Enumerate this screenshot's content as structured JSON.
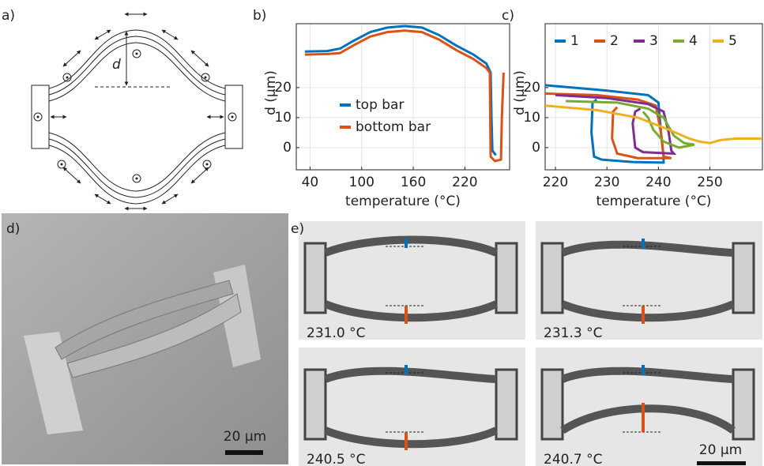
{
  "diagram": {
    "panel_label": "a)",
    "dimension_label": "d"
  },
  "chart_data": [
    {
      "type": "line",
      "panel_label": "b)",
      "x_label": "temperature (°C)",
      "y_label": "d (µm)",
      "xlim": [
        24,
        272
      ],
      "ylim": [
        -7.4,
        41.3
      ],
      "xticks": [
        40,
        100,
        160,
        220
      ],
      "yticks": [
        0,
        10,
        20
      ],
      "grid": true,
      "legend": "lower center",
      "legend_columns": 1,
      "series": [
        {
          "name": "top bar",
          "color": "#0072bd",
          "x": [
            34,
            60,
            75,
            90,
            110,
            130,
            150,
            170,
            190,
            210,
            230,
            245,
            250,
            251,
            252,
            256
          ],
          "values": [
            32,
            32.2,
            33,
            35.5,
            38.5,
            40,
            40.5,
            40,
            37.5,
            34,
            31,
            28,
            25,
            10,
            -1,
            -2.5
          ]
        },
        {
          "name": "bottom bar",
          "color": "#d95319",
          "x": [
            34,
            60,
            75,
            90,
            110,
            130,
            150,
            170,
            190,
            210,
            230,
            245,
            249,
            249.5,
            250,
            255,
            262,
            263,
            265
          ],
          "values": [
            31,
            31.2,
            31.5,
            34,
            37,
            38.5,
            39,
            38.5,
            36,
            32.5,
            29.5,
            26.5,
            25,
            10,
            -3,
            -4.5,
            -4,
            10,
            25
          ]
        }
      ]
    },
    {
      "type": "line",
      "panel_label": "c)",
      "x_label": "temperature (°C)",
      "y_label": "d (µm)",
      "xlim": [
        218,
        260.2
      ],
      "ylim": [
        -7.4,
        41.3
      ],
      "xticks": [
        220,
        230,
        240,
        250
      ],
      "yticks": [
        0,
        10,
        20
      ],
      "grid": true,
      "legend": "upper center",
      "legend_columns": 5,
      "series": [
        {
          "name": "1",
          "color": "#0072bd",
          "x": [
            218,
            230,
            238,
            240,
            240.5,
            241,
            241,
            235,
            229,
            227.5,
            227,
            227.2,
            228
          ],
          "values": [
            20.8,
            19,
            17.5,
            15,
            5,
            -3,
            -5,
            -4.8,
            -4,
            -3,
            5,
            15,
            16
          ]
        },
        {
          "name": "2",
          "color": "#d95319",
          "x": [
            218,
            228,
            236,
            239.5,
            240.5,
            241,
            242.5,
            236,
            232,
            231,
            231.2,
            232
          ],
          "values": [
            18,
            17.5,
            16,
            14,
            5,
            -3,
            -3.5,
            -3.5,
            -2,
            3,
            12,
            13.5
          ]
        },
        {
          "name": "3",
          "color": "#7e2f8e",
          "x": [
            220,
            230,
            238,
            241,
            242,
            242.5,
            243,
            237,
            235.5,
            235,
            235.5,
            236.5
          ],
          "values": [
            17.5,
            16.5,
            14.5,
            12,
            5,
            -1,
            -2,
            -1.5,
            0,
            8,
            12,
            13
          ]
        },
        {
          "name": "4",
          "color": "#77ac30",
          "x": [
            222,
            232,
            238,
            241,
            243,
            245,
            247,
            244,
            241,
            239,
            238,
            237
          ],
          "values": [
            15.5,
            15,
            13,
            10,
            4,
            1.5,
            1,
            0,
            2,
            6,
            10,
            12
          ]
        },
        {
          "name": "5",
          "color": "#edb120",
          "x": [
            218,
            228,
            236,
            242,
            246,
            248,
            250,
            252,
            255,
            260
          ],
          "values": [
            14,
            12.5,
            10,
            6,
            3,
            2,
            1.5,
            2.5,
            3,
            3
          ]
        }
      ]
    }
  ],
  "sem_image": {
    "panel_label": "d)",
    "scale_bar": "20 µm"
  },
  "micrographs": {
    "panel_label": "e)",
    "temperatures": [
      "231.0 °C",
      "231.3 °C",
      "240.5 °C",
      "240.7 °C"
    ],
    "scale_bar": "20 µm"
  }
}
